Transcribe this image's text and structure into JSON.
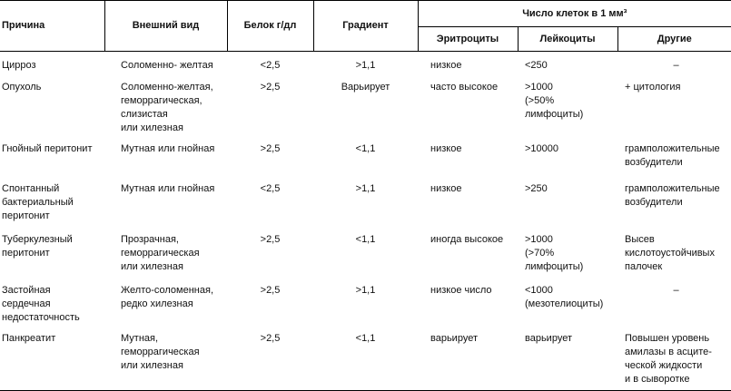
{
  "table": {
    "header": [
      "Причина",
      "Внешний вид",
      "Белок г/дл",
      "Градиент",
      "Число клеток в 1 мм³"
    ],
    "subheader": [
      "Эритроциты",
      "Лейкоциты",
      "Другие"
    ],
    "rows": [
      [
        "Цирроз",
        "Соломенно- желтая",
        "<2,5",
        ">1,1",
        "низкое",
        "<250",
        "–"
      ],
      [
        "Опухоль",
        "Соломенно-желтая,\nгеморрагическая,\nслизистая\nили хилезная",
        ">2,5",
        "Варьирует",
        "часто высокое",
        ">1000\n(>50% лимфоциты)",
        "+ цитология"
      ],
      [
        "Гнойный перитонит",
        "Мутная или гнойная",
        ">2,5",
        "<1,1",
        "низкое",
        ">10000",
        "грамположительные\nвозбудители"
      ],
      [
        "Спонтанный\nбактериальный\nперитонит",
        "Мутная или гнойная",
        "<2,5",
        ">1,1",
        "низкое",
        ">250",
        "грамположительные\nвозбудители"
      ],
      [
        "Туберкулезный\nперитонит",
        "Прозрачная,\nгеморрагическая\nили хилезная",
        ">2,5",
        "<1,1",
        "иногда высокое",
        ">1000\n(>70% лимфоциты)",
        "Высев\nкислотоустойчивых\nпалочек"
      ],
      [
        "Застойная сердечная\nнедостаточность",
        "Желто-соломенная,\nредко хилезная",
        ">2,5",
        ">1,1",
        "низкое число",
        "<1000\n(мезотелиоциты)",
        "–"
      ],
      [
        "Панкреатит",
        "Мутная,\nгеморрагическая\nили хилезная",
        ">2,5",
        "<1,1",
        "варьирует",
        "варьирует",
        "Повышен уровень\nамилазы в асците-\nческой жидкости\nи в сыворотке"
      ]
    ]
  }
}
